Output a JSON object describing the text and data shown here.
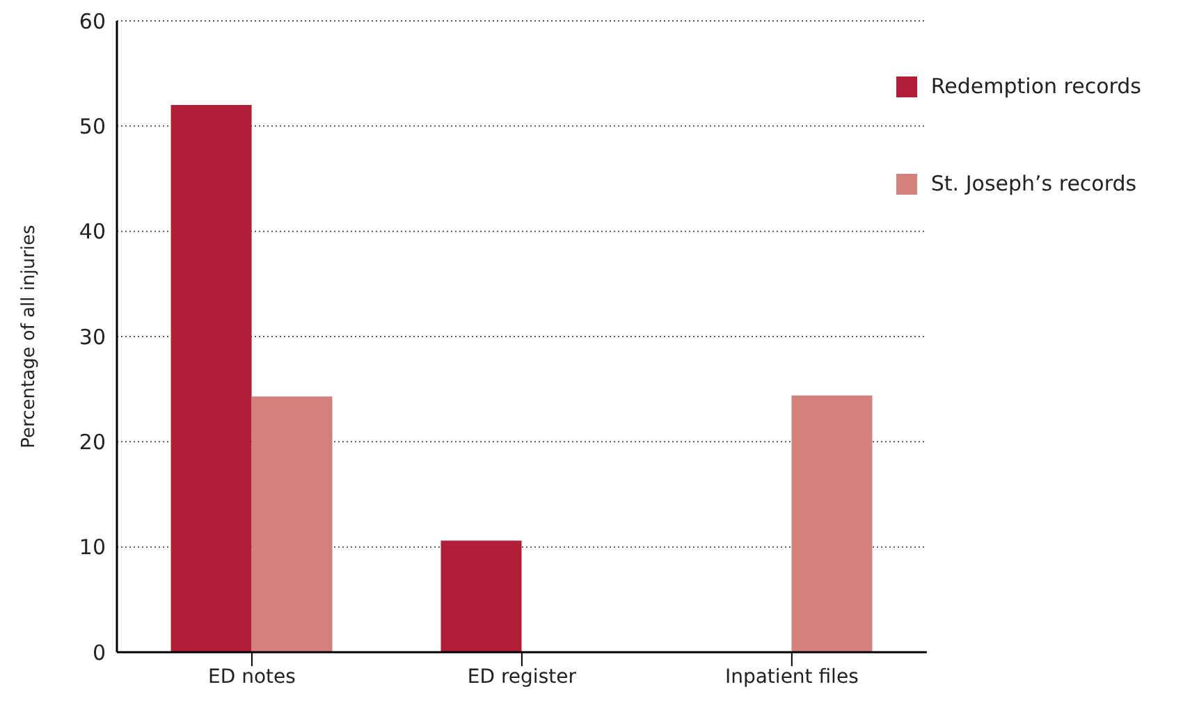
{
  "chart_data": {
    "type": "bar",
    "ylabel": "Percentage of all injuries",
    "categories": [
      "ED notes",
      "ED register",
      "Inpatient files"
    ],
    "series": [
      {
        "name": "Redemption records",
        "color": "#b11e38",
        "values": [
          52,
          10.6,
          null
        ]
      },
      {
        "name": "St. Joseph’s records",
        "color": "#d4807c",
        "values": [
          24.3,
          null,
          24.4
        ]
      }
    ],
    "ylim": [
      0,
      60
    ],
    "yticks": [
      0,
      10,
      20,
      30,
      40,
      50,
      60
    ],
    "grid": "y",
    "legend": "top right"
  }
}
